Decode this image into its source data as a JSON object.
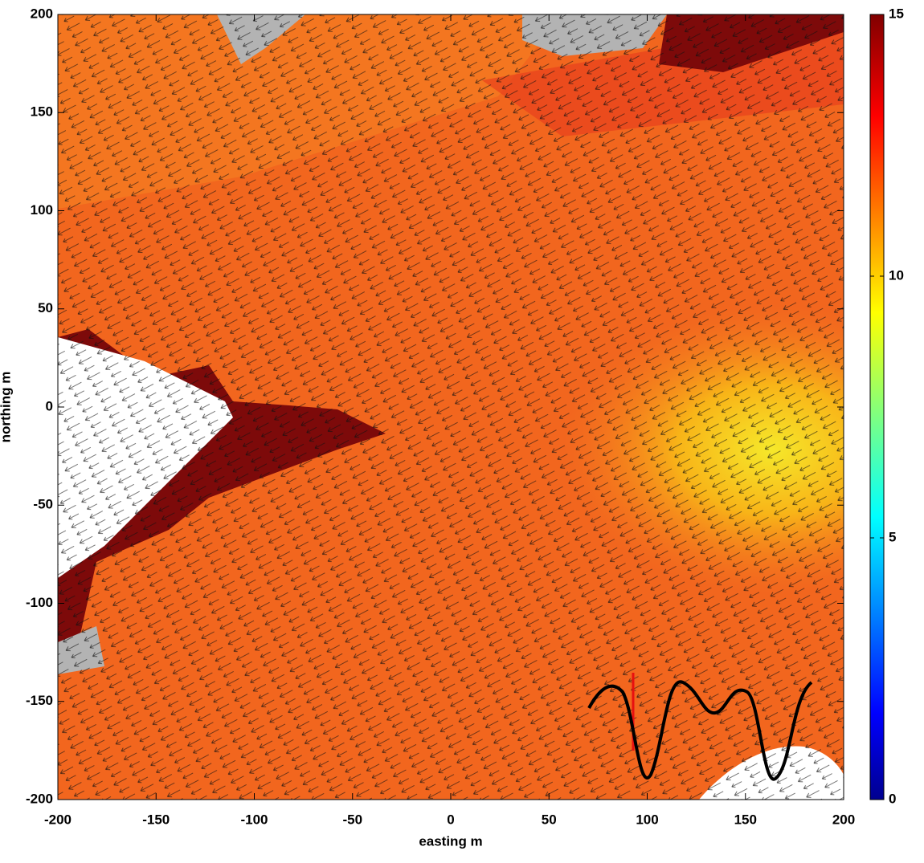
{
  "chart_data": {
    "type": "quiver",
    "xlabel": "easting m",
    "ylabel": "northing m",
    "xlim": [
      -200,
      200
    ],
    "xticks": [
      -200,
      -150,
      -100,
      -50,
      0,
      50,
      100,
      150,
      200
    ],
    "ylim": [
      -200,
      200
    ],
    "yticks": [
      -200,
      -150,
      -100,
      -50,
      0,
      50,
      100,
      150,
      200
    ],
    "colorbar": {
      "colormap": "jet",
      "clim": [
        0,
        15
      ],
      "ticks": [
        0,
        5,
        10,
        15
      ]
    }
  }
}
